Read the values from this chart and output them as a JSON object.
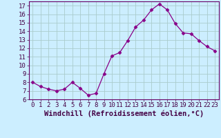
{
  "x": [
    0,
    1,
    2,
    3,
    4,
    5,
    6,
    7,
    8,
    9,
    10,
    11,
    12,
    13,
    14,
    15,
    16,
    17,
    18,
    19,
    20,
    21,
    22,
    23
  ],
  "y": [
    8.0,
    7.5,
    7.2,
    7.0,
    7.2,
    8.0,
    7.3,
    6.5,
    6.7,
    9.0,
    11.1,
    11.5,
    12.9,
    14.5,
    15.3,
    16.5,
    17.2,
    16.5,
    14.9,
    13.8,
    13.7,
    12.9,
    12.2,
    11.7
  ],
  "line_color": "#880088",
  "marker": "D",
  "marker_size": 2.5,
  "bg_color": "#cceeff",
  "grid_color": "#aacccc",
  "xlabel": "Windchill (Refroidissement éolien,°C)",
  "xlabel_fontsize": 7.5,
  "ylim": [
    6,
    17.5
  ],
  "ytick_min": 6,
  "ytick_max": 17,
  "xticks": [
    0,
    1,
    2,
    3,
    4,
    5,
    6,
    7,
    8,
    9,
    10,
    11,
    12,
    13,
    14,
    15,
    16,
    17,
    18,
    19,
    20,
    21,
    22,
    23
  ],
  "tick_fontsize": 6.5,
  "spine_color": "#660066"
}
